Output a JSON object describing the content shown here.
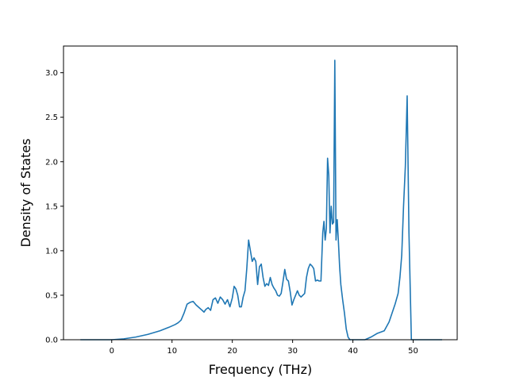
{
  "chart_data": {
    "type": "line",
    "title": "",
    "xlabel": "Frequency (THz)",
    "ylabel": "Density of States",
    "xlim": [
      -8,
      57.3
    ],
    "ylim": [
      0,
      3.3
    ],
    "xticks": [
      0,
      10,
      20,
      30,
      40,
      50
    ],
    "yticks": [
      0.0,
      0.5,
      1.0,
      1.5,
      2.0,
      2.5,
      3.0
    ],
    "xtick_labels": [
      "0",
      "10",
      "20",
      "30",
      "40",
      "50"
    ],
    "ytick_labels": [
      "0.0",
      "0.5",
      "1.0",
      "1.5",
      "2.0",
      "2.5",
      "3.0"
    ],
    "grid": false,
    "series": [
      {
        "color": "#1f77b4",
        "x": [
          -5.2,
          -2,
          0,
          2,
          4,
          6,
          8,
          9.5,
          10.5,
          11,
          11.5,
          12,
          12.5,
          13,
          13.5,
          14,
          14.5,
          15,
          15.3,
          15.6,
          16,
          16.4,
          16.8,
          17.2,
          17.6,
          18,
          18.4,
          18.8,
          19.2,
          19.6,
          20,
          20.3,
          20.6,
          20.9,
          21.2,
          21.5,
          21.8,
          22.1,
          22.4,
          22.7,
          23,
          23.3,
          23.6,
          23.9,
          24.2,
          24.5,
          24.8,
          25.1,
          25.4,
          25.7,
          26,
          26.3,
          26.6,
          26.9,
          27.2,
          27.5,
          27.8,
          28.1,
          28.4,
          28.7,
          29,
          29.3,
          29.6,
          29.9,
          30.2,
          30.5,
          30.8,
          31.1,
          31.4,
          31.7,
          32,
          32.3,
          32.6,
          32.9,
          33.2,
          33.5,
          33.8,
          34.1,
          34.4,
          34.7,
          35,
          35.2,
          35.4,
          35.6,
          35.8,
          36,
          36.2,
          36.4,
          36.6,
          36.8,
          37,
          37.2,
          37.4,
          37.6,
          37.8,
          38,
          38.3,
          38.6,
          38.9,
          39.2,
          39.5,
          39.8,
          40.2,
          41,
          42,
          43,
          44,
          45.2,
          46,
          46.5,
          47,
          47.5,
          47.8,
          48.1,
          48.4,
          48.7,
          49,
          49.3,
          49.7,
          50,
          51,
          52,
          53,
          54.8
        ],
        "y": [
          0.0,
          0.0,
          0.0,
          0.01,
          0.03,
          0.06,
          0.1,
          0.14,
          0.17,
          0.19,
          0.22,
          0.3,
          0.4,
          0.42,
          0.43,
          0.39,
          0.36,
          0.33,
          0.31,
          0.34,
          0.36,
          0.33,
          0.45,
          0.47,
          0.41,
          0.48,
          0.45,
          0.4,
          0.45,
          0.37,
          0.47,
          0.6,
          0.57,
          0.5,
          0.37,
          0.37,
          0.48,
          0.55,
          0.8,
          1.12,
          1.0,
          0.88,
          0.92,
          0.88,
          0.62,
          0.82,
          0.85,
          0.7,
          0.6,
          0.63,
          0.61,
          0.7,
          0.62,
          0.58,
          0.55,
          0.5,
          0.49,
          0.52,
          0.65,
          0.79,
          0.68,
          0.66,
          0.54,
          0.39,
          0.45,
          0.5,
          0.55,
          0.5,
          0.48,
          0.5,
          0.52,
          0.7,
          0.8,
          0.85,
          0.83,
          0.8,
          0.66,
          0.67,
          0.66,
          0.66,
          1.2,
          1.33,
          1.12,
          1.25,
          2.04,
          1.85,
          1.2,
          1.5,
          1.3,
          1.32,
          3.14,
          1.12,
          1.35,
          1.1,
          0.82,
          0.62,
          0.45,
          0.3,
          0.12,
          0.03,
          0.0,
          0.0,
          0.0,
          0.0,
          0.0,
          0.03,
          0.07,
          0.1,
          0.2,
          0.3,
          0.4,
          0.52,
          0.7,
          0.95,
          1.5,
          1.95,
          2.74,
          1.2,
          0.0,
          0.0,
          0.0,
          0.0,
          0.0,
          0.0
        ]
      }
    ]
  }
}
